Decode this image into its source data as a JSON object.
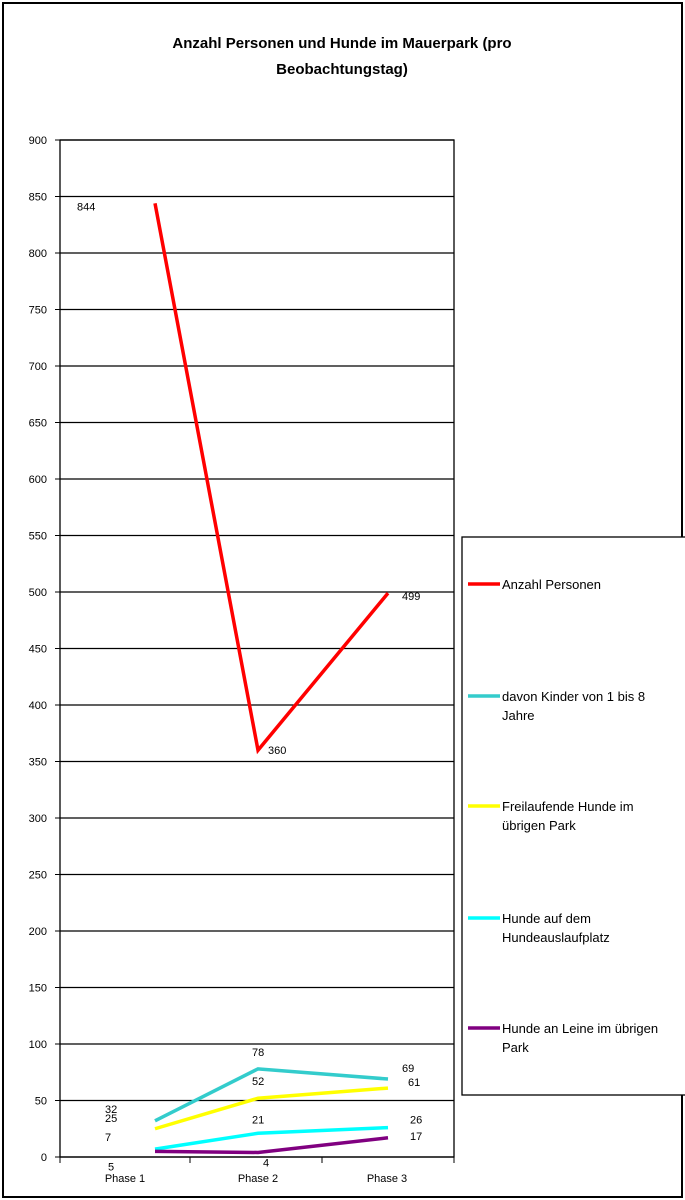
{
  "chart_data": {
    "type": "line",
    "title_lines": [
      "Anzahl Personen und Hunde im Mauerpark (pro",
      "Beobachtungstag)"
    ],
    "categories": [
      "Phase 1",
      "Phase 2",
      "Phase 3"
    ],
    "ylim": [
      0,
      900
    ],
    "yticks": [
      "0",
      "50",
      "100",
      "150",
      "200",
      "250",
      "300",
      "350",
      "400",
      "450",
      "500",
      "550",
      "600",
      "650",
      "700",
      "750",
      "800",
      "850",
      "900"
    ],
    "grid": true,
    "legend_position": "right",
    "series": [
      {
        "name_lines": [
          "Anzahl Personen"
        ],
        "values": [
          844,
          360,
          499
        ],
        "labels": [
          "844",
          "360",
          "499"
        ],
        "color": "#ff0000"
      },
      {
        "name_lines": [
          "davon Kinder von 1 bis 8",
          "Jahre"
        ],
        "values": [
          32,
          78,
          69
        ],
        "labels": [
          "32",
          "78",
          "69"
        ],
        "color": "#33cccc"
      },
      {
        "name_lines": [
          "Freilaufende Hunde im",
          "übrigen Park"
        ],
        "values": [
          25,
          52,
          61
        ],
        "labels": [
          "25",
          "52",
          "61"
        ],
        "color": "#ffff00"
      },
      {
        "name_lines": [
          "Hunde auf dem",
          "Hundeauslaufplatz"
        ],
        "values": [
          7,
          21,
          26
        ],
        "labels": [
          "7",
          "21",
          "26"
        ],
        "color": "#00ffff"
      },
      {
        "name_lines": [
          "Hunde an Leine im übrigen",
          "Park"
        ],
        "values": [
          5,
          4,
          17
        ],
        "labels": [
          "5",
          "4",
          "17"
        ],
        "color": "#800080"
      }
    ]
  }
}
